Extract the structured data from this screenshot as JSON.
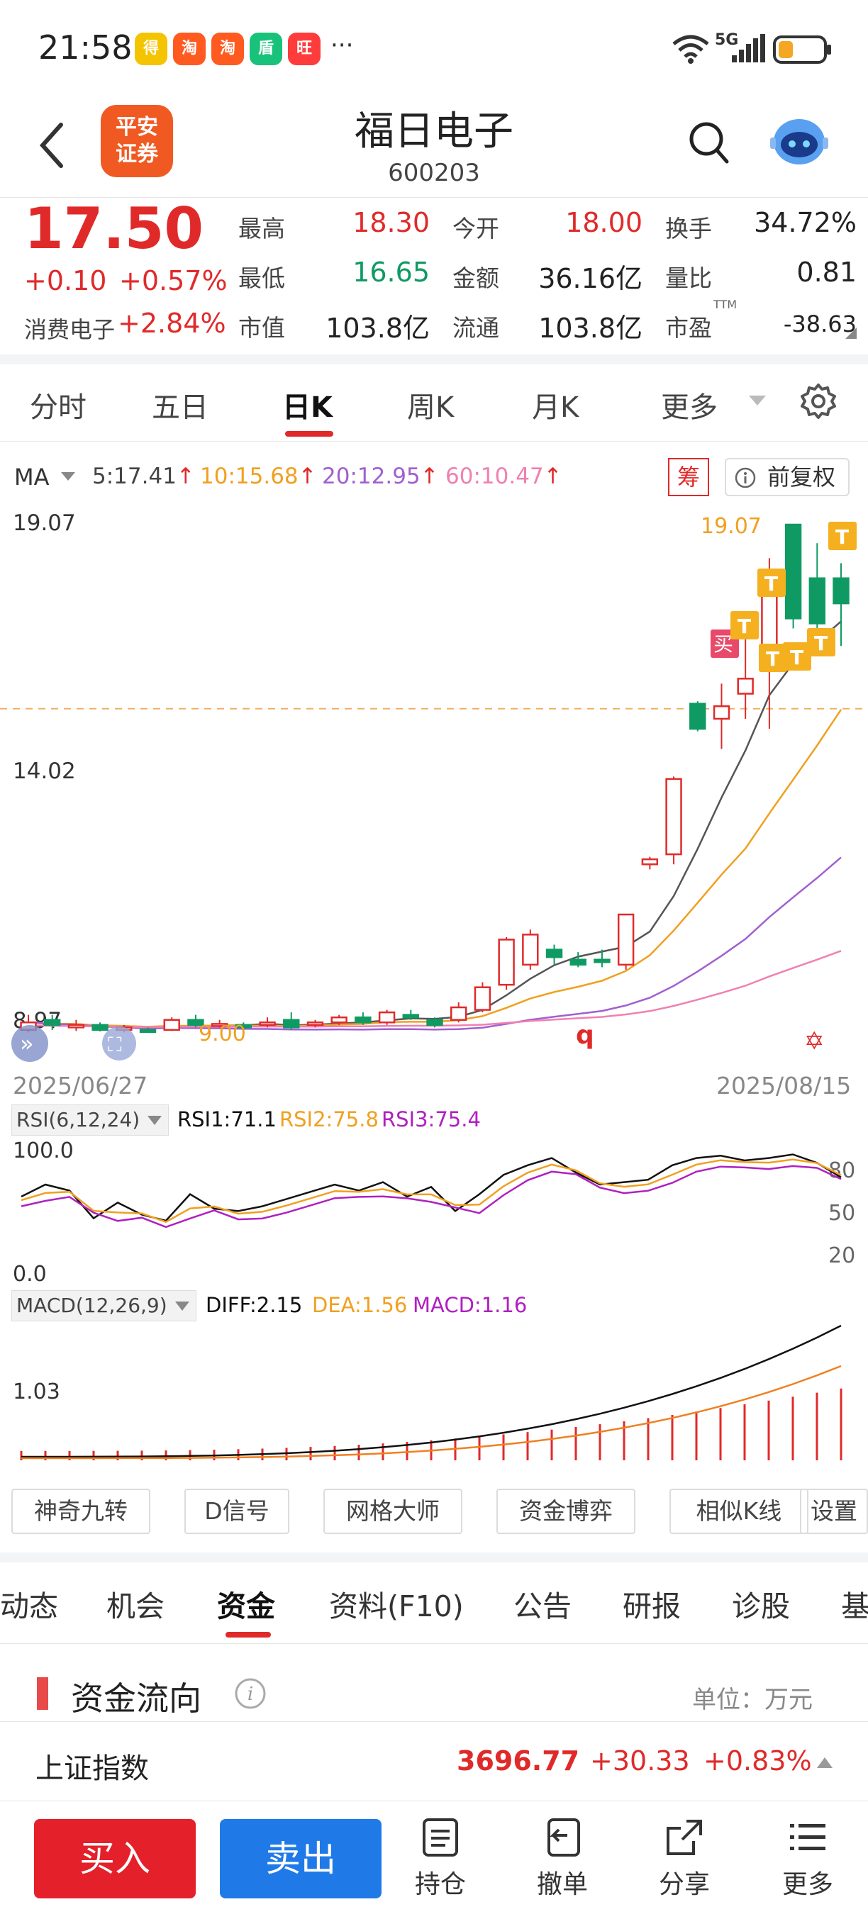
{
  "status_bar": {
    "time": "21:58",
    "apps": [
      {
        "icon": "app-1-icon",
        "text": "得",
        "color": "#f5c400"
      },
      {
        "icon": "taobao-icon",
        "text": "淘",
        "color": "#ff5a1f"
      },
      {
        "icon": "taobao-icon",
        "text": "淘",
        "color": "#ff5a1f"
      },
      {
        "icon": "app-4-icon",
        "text": "盾",
        "color": "#18c27a"
      },
      {
        "icon": "app-5-icon",
        "text": "旺",
        "color": "#ff3c3c"
      }
    ],
    "more": "···",
    "network": "5G"
  },
  "header": {
    "broker_logo_line1": "平安",
    "broker_logo_line2": "证券",
    "stock_name": "福日电子",
    "stock_code": "600203"
  },
  "quote": {
    "price": "17.50",
    "change": "+0.10",
    "change_pct": "+0.57%",
    "sector_name": "消费电子",
    "sector_pct": "+2.84%",
    "high_label": "最高",
    "high": "18.30",
    "open_label": "今开",
    "open": "18.00",
    "turnover_label": "换手",
    "turnover": "34.72%",
    "low_label": "最低",
    "low": "16.65",
    "amount_label": "金额",
    "amount": "36.16亿",
    "vol_ratio_label": "量比",
    "vol_ratio": "0.81",
    "mktcap_label": "市值",
    "mktcap": "103.8亿",
    "float_label": "流通",
    "float": "103.8亿",
    "pe_label": "市盈",
    "pe_sup": "TTM",
    "pe": "-38.63"
  },
  "period_tabs": [
    "分时",
    "五日",
    "日K",
    "周K",
    "月K",
    "更多"
  ],
  "active_period": "日K",
  "ma_bar": {
    "label": "MA",
    "ma5": "5:17.41",
    "ma10": "10:15.68",
    "ma20": "20:12.95",
    "ma60": "60:10.47",
    "chip_button": "筹",
    "adjust_button": "前复权",
    "colors": {
      "ma5": "#555555",
      "ma10": "#f0a020",
      "ma20": "#a060d0",
      "ma60": "#f080b0"
    }
  },
  "kline": {
    "y_top_label": "19.07",
    "y_mid_label": "14.02",
    "y_bottom_label": "8.97",
    "date_start": "2025/06/27",
    "date_end": "2025/08/15",
    "max_price_label": "19.07",
    "min_price_label": "9.00",
    "buy_marker": "买",
    "t_marker": "T",
    "q_marker": "q"
  },
  "chart_data": [
    {
      "type": "candlestick",
      "title": "日K",
      "ylim": [
        8.97,
        19.07
      ],
      "x_range": [
        "2025/06/27",
        "2025/08/15"
      ],
      "current_price_line": 15.4,
      "candles": [
        {
          "o": 9.0,
          "c": 9.15,
          "h": 9.3,
          "l": 8.95
        },
        {
          "o": 9.2,
          "c": 9.1,
          "h": 9.3,
          "l": 9.0
        },
        {
          "o": 9.05,
          "c": 9.1,
          "h": 9.2,
          "l": 8.98
        },
        {
          "o": 9.1,
          "c": 9.0,
          "h": 9.15,
          "l": 8.97
        },
        {
          "o": 9.0,
          "c": 9.05,
          "h": 9.1,
          "l": 8.95
        },
        {
          "o": 9.0,
          "c": 8.98,
          "h": 9.05,
          "l": 8.94
        },
        {
          "o": 9.0,
          "c": 9.2,
          "h": 9.25,
          "l": 8.98
        },
        {
          "o": 9.2,
          "c": 9.1,
          "h": 9.3,
          "l": 9.05
        },
        {
          "o": 9.1,
          "c": 9.12,
          "h": 9.2,
          "l": 9.05
        },
        {
          "o": 9.1,
          "c": 9.05,
          "h": 9.15,
          "l": 9.0
        },
        {
          "o": 9.1,
          "c": 9.15,
          "h": 9.25,
          "l": 9.05
        },
        {
          "o": 9.2,
          "c": 9.05,
          "h": 9.35,
          "l": 9.0
        },
        {
          "o": 9.1,
          "c": 9.15,
          "h": 9.2,
          "l": 9.05
        },
        {
          "o": 9.15,
          "c": 9.25,
          "h": 9.3,
          "l": 9.1
        },
        {
          "o": 9.25,
          "c": 9.15,
          "h": 9.35,
          "l": 9.1
        },
        {
          "o": 9.15,
          "c": 9.35,
          "h": 9.4,
          "l": 9.1
        },
        {
          "o": 9.3,
          "c": 9.25,
          "h": 9.4,
          "l": 9.2
        },
        {
          "o": 9.2,
          "c": 9.1,
          "h": 9.25,
          "l": 9.05
        },
        {
          "o": 9.2,
          "c": 9.45,
          "h": 9.55,
          "l": 9.15
        },
        {
          "o": 9.4,
          "c": 9.85,
          "h": 9.95,
          "l": 9.35
        },
        {
          "o": 9.9,
          "c": 10.8,
          "h": 10.85,
          "l": 9.8
        },
        {
          "o": 10.3,
          "c": 10.9,
          "h": 11.0,
          "l": 10.2
        },
        {
          "o": 10.6,
          "c": 10.45,
          "h": 10.7,
          "l": 10.3
        },
        {
          "o": 10.4,
          "c": 10.3,
          "h": 10.55,
          "l": 10.25
        },
        {
          "o": 10.4,
          "c": 10.35,
          "h": 10.6,
          "l": 10.25
        },
        {
          "o": 10.3,
          "c": 11.3,
          "h": 11.3,
          "l": 10.2
        },
        {
          "o": 12.3,
          "c": 12.4,
          "h": 12.45,
          "l": 12.2
        },
        {
          "o": 12.5,
          "c": 14.0,
          "h": 14.05,
          "l": 12.3
        },
        {
          "o": 15.5,
          "c": 15.0,
          "h": 15.55,
          "l": 14.95
        },
        {
          "o": 15.2,
          "c": 15.45,
          "h": 15.9,
          "l": 14.6
        },
        {
          "o": 15.7,
          "c": 16.0,
          "h": 16.8,
          "l": 15.2
        },
        {
          "o": 16.4,
          "c": 17.9,
          "h": 18.4,
          "l": 15.0
        },
        {
          "o": 19.07,
          "c": 17.2,
          "h": 19.07,
          "l": 17.0
        },
        {
          "o": 18.0,
          "c": 17.1,
          "h": 18.7,
          "l": 16.8
        },
        {
          "o": 18.0,
          "c": 17.5,
          "h": 18.3,
          "l": 16.65
        }
      ]
    },
    {
      "type": "line",
      "title": "RSI(6,12,24)",
      "ylim": [
        0,
        100
      ],
      "series": [
        {
          "name": "RSI1",
          "value": "71.1"
        },
        {
          "name": "RSI2",
          "value": "75.8"
        },
        {
          "name": "RSI3",
          "value": "75.4"
        }
      ],
      "right_ticks": [
        "80",
        "50",
        "20"
      ]
    },
    {
      "type": "bar",
      "title": "MACD(12,26,9)",
      "series": [
        {
          "name": "DIFF",
          "value": "2.15"
        },
        {
          "name": "DEA",
          "value": "1.56"
        },
        {
          "name": "MACD",
          "value": "1.16"
        }
      ],
      "y_label": "1.03"
    }
  ],
  "rsi_panel": {
    "label": "RSI(6,12,24)",
    "rsi1": "RSI1:71.1",
    "rsi2": "RSI2:75.8",
    "rsi3": "RSI3:75.4",
    "y_top": "100.0",
    "y_bottom": "0.0",
    "tick80": "80",
    "tick50": "50",
    "tick20": "20"
  },
  "macd_panel": {
    "label": "MACD(12,26,9)",
    "diff": "DIFF:2.15",
    "dea": "DEA:1.56",
    "macd": "MACD:1.16",
    "y_label": "1.03"
  },
  "tool_chips": [
    "神奇九转",
    "D信号",
    "网格大师",
    "资金博弈",
    "相似K线",
    "设置"
  ],
  "feature_tabs": [
    "动态",
    "机会",
    "资金",
    "资料(F10)",
    "公告",
    "研报",
    "诊股",
    "基"
  ],
  "active_feature_tab": "资金",
  "fund_flow": {
    "title": "资金流向",
    "unit": "单位：万元"
  },
  "index_bar": {
    "name": "上证指数",
    "value": "3696.77",
    "change": "+30.33",
    "pct": "+0.83%"
  },
  "bottom_nav": {
    "buy": "买入",
    "sell": "卖出",
    "items": [
      {
        "icon": "position-icon",
        "label": "持仓"
      },
      {
        "icon": "cancel-order-icon",
        "label": "撤单"
      },
      {
        "icon": "share-icon",
        "label": "分享"
      },
      {
        "icon": "more-icon",
        "label": "更多"
      }
    ]
  }
}
